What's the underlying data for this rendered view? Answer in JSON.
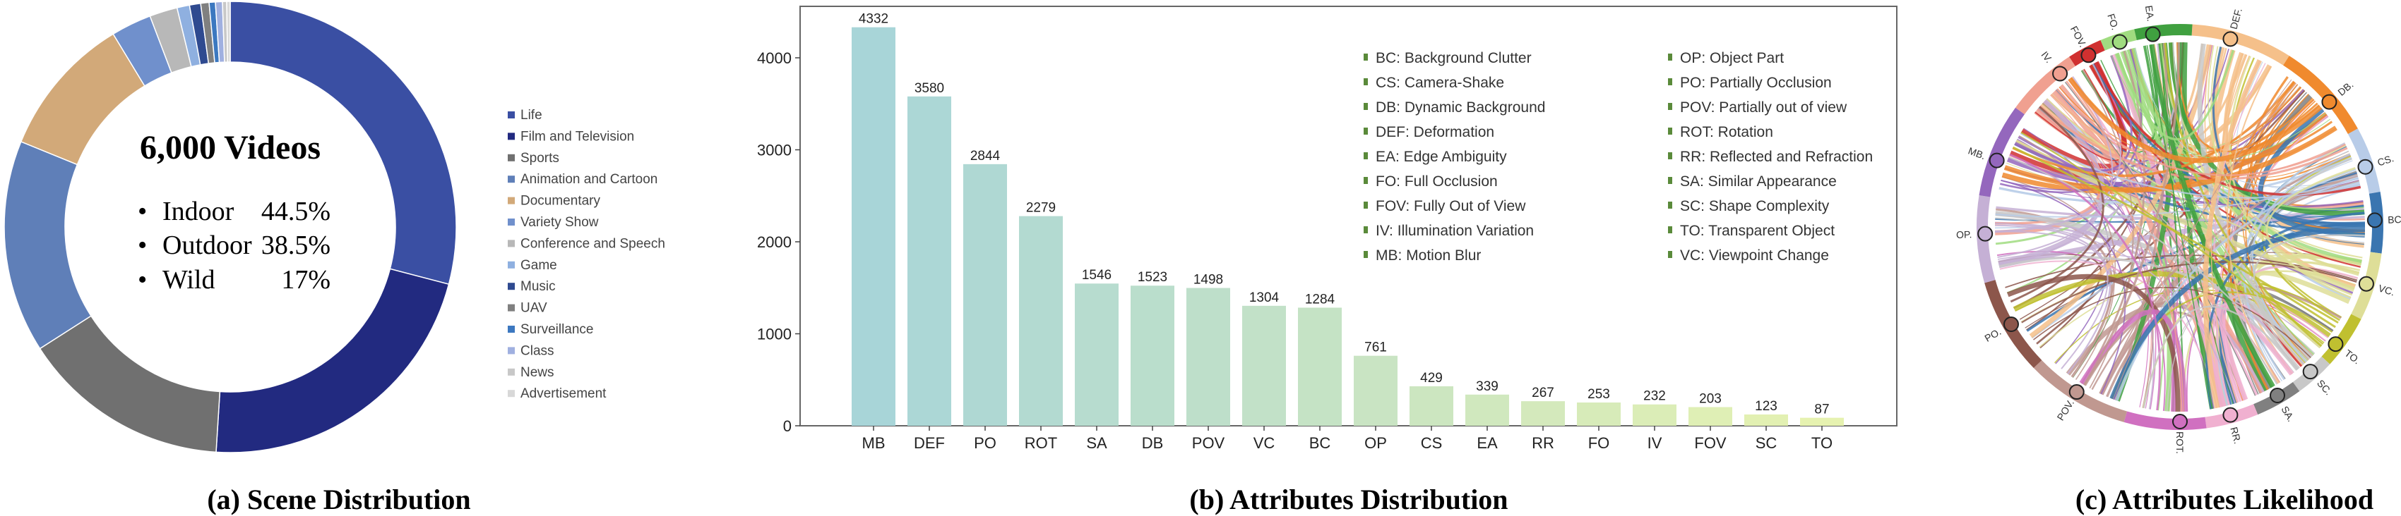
{
  "chart_data": [
    {
      "type": "pie",
      "variant": "donut",
      "caption": "(a) Scene Distribution",
      "center_title": "6,000 Videos",
      "center_stats": [
        {
          "label": "Indoor",
          "value": "44.5%"
        },
        {
          "label": "Outdoor",
          "value": "38.5%"
        },
        {
          "label": "Wild",
          "value": "17%"
        }
      ],
      "legend_placement": "right",
      "categories": [
        "Life",
        "Film and Television",
        "Sports",
        "Animation and Cartoon",
        "Documentary",
        "Variety Show",
        "Conference and Speech",
        "Game",
        "Music",
        "UAV",
        "Surveillance",
        "Class",
        "News",
        "Advertisement"
      ],
      "values_percent_estimated": [
        29.2,
        22.0,
        15.0,
        15.3,
        10.2,
        2.9,
        2.0,
        0.9,
        0.8,
        0.6,
        0.45,
        0.5,
        0.3,
        0.25
      ],
      "colors": [
        "#3a4fa3",
        "#222a80",
        "#707070",
        "#5f7fb8",
        "#d2a979",
        "#7090cc",
        "#b8b8b8",
        "#8fb0e0",
        "#2f4a90",
        "#808080",
        "#3c78c0",
        "#a0b0e0",
        "#c8c8c8",
        "#d8d8d8"
      ]
    },
    {
      "type": "bar",
      "caption": "(b) Attributes Distribution",
      "categories": [
        "MB",
        "DEF",
        "PO",
        "ROT",
        "SA",
        "DB",
        "POV",
        "VC",
        "BC",
        "OP",
        "CS",
        "EA",
        "RR",
        "FO",
        "IV",
        "FOV",
        "SC",
        "TO"
      ],
      "values": [
        4332,
        3580,
        2844,
        2279,
        1546,
        1523,
        1498,
        1304,
        1284,
        761,
        429,
        339,
        267,
        253,
        232,
        203,
        123,
        87
      ],
      "data_labels": [
        "4332",
        "3580",
        "2844",
        "2279",
        "1546",
        "1523",
        "1498",
        "1304",
        "1284",
        "761",
        "429",
        "339",
        "267",
        "253",
        "232",
        "203",
        "123",
        "87"
      ],
      "yticks": [
        "0",
        "1000",
        "2000",
        "3000",
        "4000"
      ],
      "ylim": [
        0,
        4500
      ],
      "xlabel": "",
      "ylabel": "",
      "grid": false,
      "color_start": "#a8d5d8",
      "color_end": "#e6f2b0",
      "legend_placement": "top-right",
      "legend_marker_color": "#5a8a3a",
      "legend": [
        [
          "BC: Background Clutter",
          "CS: Camera-Shake",
          "DB: Dynamic Background",
          "DEF: Deformation",
          "EA: Edge Ambiguity",
          "FO: Full Occlusion",
          "FOV: Fully Out of View",
          "IV: Illumination Variation",
          "MB: Motion Blur"
        ],
        [
          "OP: Object Part",
          "PO: Partially Occlusion",
          "POV: Partially out of view",
          "ROT: Rotation",
          "RR: Reflected and Refraction",
          "SA: Similar Appearance",
          "SC: Shape Complexity",
          "TO: Transparent Object",
          "VC: Viewpoint Change"
        ]
      ]
    },
    {
      "type": "chord",
      "caption": "(c) Attributes Likelihood",
      "nodes": [
        {
          "label": "DEF.",
          "color": "#f5c08a"
        },
        {
          "label": "DB.",
          "color": "#f08a2e"
        },
        {
          "label": "CS.",
          "color": "#b8cce8"
        },
        {
          "label": "BC.",
          "color": "#3a75b0"
        },
        {
          "label": "VC.",
          "color": "#dede98"
        },
        {
          "label": "TO.",
          "color": "#c0c030"
        },
        {
          "label": "SC.",
          "color": "#c8c8c8"
        },
        {
          "label": "SA.",
          "color": "#808080"
        },
        {
          "label": "RR.",
          "color": "#f0b0d0"
        },
        {
          "label": "ROT.",
          "color": "#d070c0"
        },
        {
          "label": "POV.",
          "color": "#c09890"
        },
        {
          "label": "PO.",
          "color": "#8c564b"
        },
        {
          "label": "OP.",
          "color": "#c5b0d5"
        },
        {
          "label": "MB.",
          "color": "#9467bd"
        },
        {
          "label": "IV.",
          "color": "#f0a090"
        },
        {
          "label": "FOV.",
          "color": "#d03030"
        },
        {
          "label": "FO.",
          "color": "#a0dc80"
        },
        {
          "label": "EA.",
          "color": "#40a040"
        }
      ]
    }
  ]
}
